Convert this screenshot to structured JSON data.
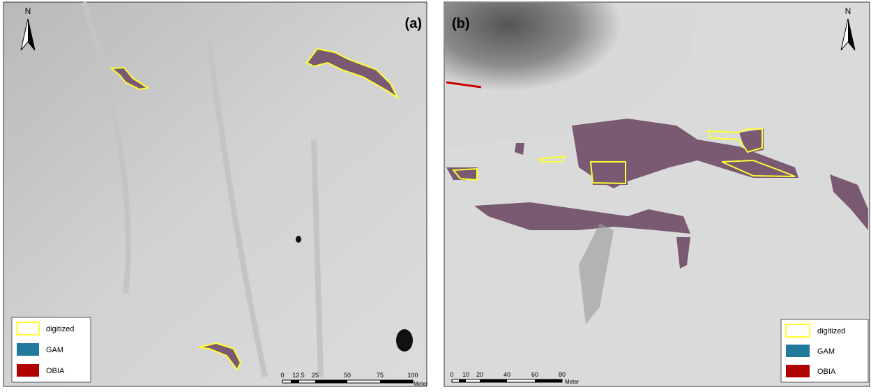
{
  "panels": [
    {
      "label": "(a)",
      "north": "N",
      "legend": [
        "digitized",
        "GAM",
        "OBIA"
      ],
      "scale": [
        "0",
        "12.5",
        "25",
        "50",
        "75",
        "100"
      ],
      "scale_unit": "Meter"
    },
    {
      "label": "(b)",
      "north": "N",
      "legend": [
        "digitized",
        "GAM",
        "OBIA"
      ],
      "scale": [
        "0",
        "10",
        "20",
        "40",
        "60",
        "80"
      ],
      "scale_unit": "Meter"
    }
  ]
}
